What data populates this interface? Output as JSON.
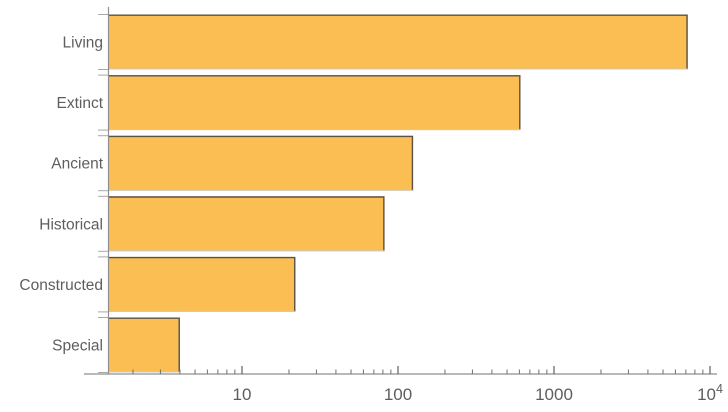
{
  "chart_data": {
    "type": "bar",
    "orientation": "horizontal",
    "title": "",
    "xlabel": "",
    "ylabel": "",
    "categories": [
      "Living",
      "Extinct",
      "Ancient",
      "Historical",
      "Constructed",
      "Special"
    ],
    "values": [
      7200,
      610,
      125,
      82,
      22,
      4
    ],
    "xscale": "log",
    "xlim": [
      1.4,
      11000
    ],
    "xticks": {
      "major": [
        10,
        100,
        1000,
        10000
      ],
      "major_labels": [
        "10",
        "100",
        "1000",
        "10^4"
      ],
      "minor_per_decade": [
        2,
        3,
        4,
        5,
        6,
        7,
        8,
        9
      ]
    },
    "grid": false,
    "legend": null,
    "colors": {
      "bar_fill": "#fbbe53",
      "bar_edge_dark": "#5c5244",
      "bar_edge_light": "#cfc8ba",
      "axis": "#8f8f8f",
      "major_tick": "#5f5f5f",
      "minor_tick": "#707070",
      "boundary_tick": "#a8a8a8",
      "label": "#5e5e5e"
    }
  }
}
